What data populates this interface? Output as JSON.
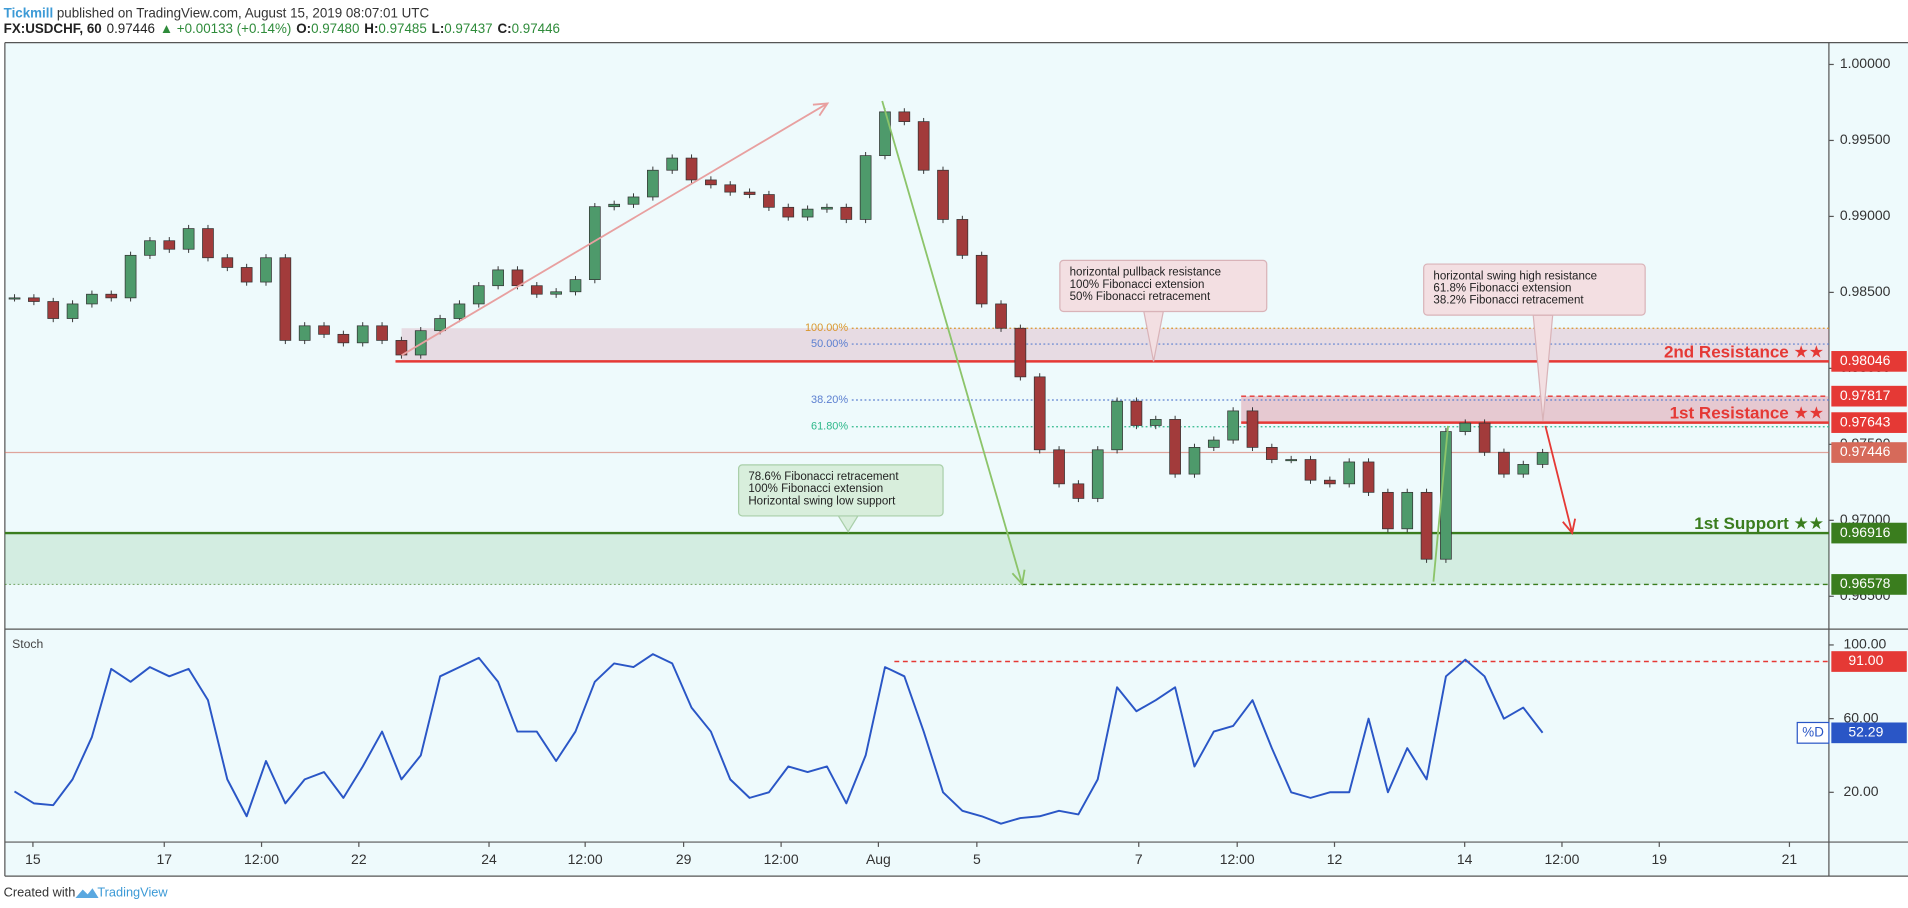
{
  "header": {
    "author": "Tickmill",
    "published": "published on TradingView.com, August 15, 2019 08:07:01 UTC",
    "symbol": "FX:USDCHF, 60",
    "price": "0.97446",
    "change": "▲ +0.00133 (+0.14%)",
    "ohlc": [
      {
        "label": "O:",
        "value": "0.97480"
      },
      {
        "label": "H:",
        "value": "0.97485"
      },
      {
        "label": "L:",
        "value": "0.97437"
      },
      {
        "label": "C:",
        "value": "0.97446"
      }
    ]
  },
  "chart_data": [
    {
      "type": "candlestick",
      "up_color": "#4e9a6b",
      "down_color": "#a23b3b",
      "closes": [
        0.98464,
        0.9844,
        0.98328,
        0.98424,
        0.98488,
        0.98464,
        0.98744,
        0.9884,
        0.98784,
        0.9892,
        0.98728,
        0.98664,
        0.98568,
        0.98728,
        0.98184,
        0.9828,
        0.98224,
        0.98168,
        0.9828,
        0.98184,
        0.98088,
        0.98248,
        0.98328,
        0.98424,
        0.98544,
        0.98648,
        0.98544,
        0.98488,
        0.98504,
        0.98584,
        0.99064,
        0.9908,
        0.99128,
        0.99304,
        0.99384,
        0.9924,
        0.99208,
        0.9916,
        0.99144,
        0.9906,
        0.98996,
        0.99048,
        0.9906,
        0.9898,
        0.994,
        0.99688,
        0.99624,
        0.99304,
        0.9898,
        0.98744,
        0.98424,
        0.98264,
        0.97944,
        0.97464,
        0.9724,
        0.97144,
        0.97464,
        0.97784,
        0.97624,
        0.97664,
        0.97304,
        0.9748,
        0.97528,
        0.9772,
        0.9748,
        0.974,
        0.974,
        0.97264,
        0.9724,
        0.97384,
        0.97184,
        0.96944,
        0.97184,
        0.96744,
        0.97584,
        0.9764,
        0.97448,
        0.97304,
        0.97368,
        0.97446
      ],
      "xlim": [
        0,
        94.3
      ],
      "xticks": [
        {
          "value": 1.45,
          "label": "15"
        },
        {
          "value": 8.24,
          "label": "17"
        },
        {
          "value": 13.27,
          "label": "12:00"
        },
        {
          "value": 18.3,
          "label": "22"
        },
        {
          "value": 25.03,
          "label": "24"
        },
        {
          "value": 30.0,
          "label": "12:00"
        },
        {
          "value": 35.09,
          "label": "29"
        },
        {
          "value": 40.13,
          "label": "12:00"
        },
        {
          "value": 45.16,
          "label": "Aug"
        },
        {
          "value": 50.25,
          "label": "5"
        },
        {
          "value": 58.62,
          "label": "7"
        },
        {
          "value": 63.71,
          "label": "12:00"
        },
        {
          "value": 68.74,
          "label": "12"
        },
        {
          "value": 75.47,
          "label": "14"
        },
        {
          "value": 80.5,
          "label": "12:00"
        },
        {
          "value": 85.53,
          "label": "19"
        },
        {
          "value": 92.26,
          "label": "21"
        }
      ],
      "ylim": [
        0.96284,
        1.00144
      ],
      "yticks": [
        {
          "value": 1,
          "label": "1.00000"
        },
        {
          "value": 0.995,
          "label": "0.99500"
        },
        {
          "value": 0.99,
          "label": "0.99000"
        },
        {
          "value": 0.985,
          "label": "0.98500"
        },
        {
          "value": 0.98,
          "label": "0.98000"
        },
        {
          "value": 0.975,
          "label": "0.97500"
        },
        {
          "value": 0.97,
          "label": "0.97000"
        },
        {
          "value": 0.965,
          "label": "0.96500"
        }
      ],
      "levels": [
        {
          "name": "2nd Resistance ★★",
          "value": 0.98046,
          "color": "#e53935"
        },
        {
          "value": 0.97817,
          "color": "#e53935"
        },
        {
          "name": "1st Resistance ★★",
          "value": 0.97643,
          "color": "#e53935"
        },
        {
          "value": 0.97446,
          "color": "#d66a5a"
        },
        {
          "name": "1st Support ★★",
          "value": 0.96916,
          "color": "#3a7d1e"
        },
        {
          "value": 0.96578,
          "color": "#3a7d1e"
        }
      ],
      "fib_levels": [
        {
          "label": "100.00%",
          "value": 0.98264,
          "color": "#d9962b"
        },
        {
          "label": "50.00%",
          "value": 0.9816,
          "color": "#5b7fd0"
        },
        {
          "label": "38.20%",
          "value": 0.97792,
          "color": "#5b7fd0"
        },
        {
          "label": "61.80%",
          "value": 0.97616,
          "color": "#2eb88a"
        }
      ],
      "annotations": [
        {
          "lines": [
            "horizontal pullback resistance",
            "100% Fibonacci extension",
            "50% Fibonacci retracement"
          ]
        },
        {
          "lines": [
            "horizontal swing high resistance",
            "61.8% Fibonacci extension",
            "38.2% Fibonacci retracement"
          ]
        },
        {
          "lines": [
            "78.6% Fibonacci retracement",
            "100% Fibonacci extension",
            "Horizontal swing low support"
          ]
        }
      ]
    },
    {
      "type": "line",
      "title": "Stoch",
      "series": [
        {
          "name": "%D",
          "color": "#2a56c6",
          "values": [
            20.5,
            14,
            13,
            27,
            50,
            87,
            80,
            88,
            83,
            87,
            70,
            27,
            7,
            37,
            14,
            27,
            31,
            17,
            34,
            53,
            27,
            40,
            83,
            88,
            93,
            80,
            53,
            53,
            37,
            53,
            80,
            90,
            88,
            95,
            90,
            66,
            53,
            27,
            17,
            20,
            34,
            31,
            34,
            14,
            40,
            88,
            83,
            53,
            20,
            10,
            7,
            3,
            6,
            7,
            10,
            8,
            27,
            77,
            64,
            70,
            77,
            34,
            53,
            56,
            70,
            44,
            20,
            17,
            20,
            20,
            60,
            20,
            44,
            27,
            83,
            92,
            83,
            60,
            66,
            52.29
          ]
        }
      ],
      "ylim": [
        -7,
        108.6
      ],
      "yticks": [
        {
          "value": 100,
          "label": "100.00"
        },
        {
          "value": 60,
          "label": "60.00"
        },
        {
          "value": 20,
          "label": "20.00"
        }
      ],
      "level": {
        "value": 91,
        "label": "91.00",
        "color": "#e53935"
      }
    }
  ],
  "footer": {
    "text": "Created with",
    "brand": "TradingView"
  }
}
